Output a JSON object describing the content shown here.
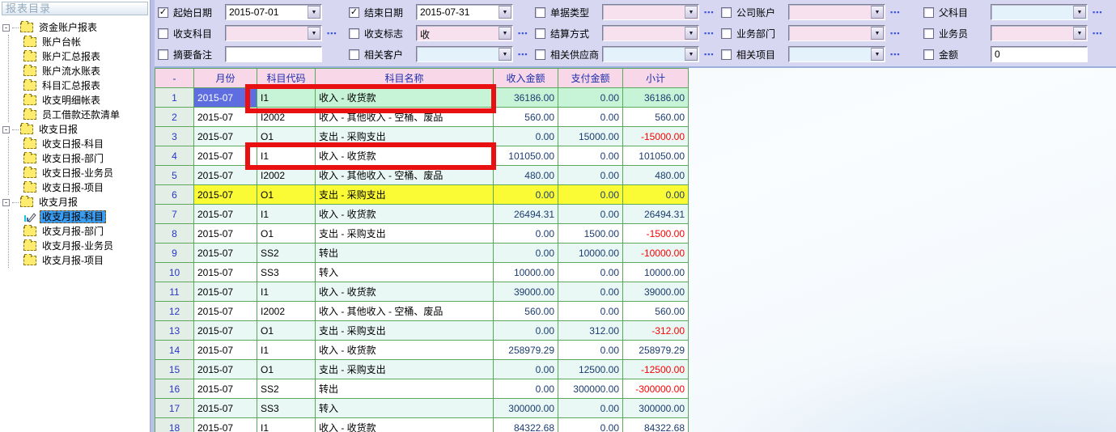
{
  "sidebar": {
    "title": "报表目录",
    "tree": [
      {
        "label": "资金账户报表",
        "children": [
          {
            "label": "账户台帐"
          },
          {
            "label": "账户汇总报表"
          },
          {
            "label": "账户流水账表"
          },
          {
            "label": "科目汇总报表"
          },
          {
            "label": "收支明细帐表"
          },
          {
            "label": "员工借款还款清单"
          }
        ]
      },
      {
        "label": "收支日报",
        "children": [
          {
            "label": "收支日报-科目"
          },
          {
            "label": "收支日报-部门"
          },
          {
            "label": "收支日报-业务员"
          },
          {
            "label": "收支日报-项目"
          }
        ]
      },
      {
        "label": "收支月报",
        "children": [
          {
            "label": "收支月报-科目",
            "selected": true,
            "icon": "chart-pen"
          },
          {
            "label": "收支月报-部门"
          },
          {
            "label": "收支月报-业务员"
          },
          {
            "label": "收支月报-项目"
          }
        ]
      }
    ]
  },
  "filters": {
    "rows": [
      [
        {
          "label": "起始日期",
          "checked": true,
          "value": "2015-07-01",
          "style": "white",
          "arrow": true,
          "dots": false
        },
        {
          "label": "结束日期",
          "checked": true,
          "value": "2015-07-31",
          "style": "white",
          "arrow": true,
          "dots": false
        },
        {
          "label": "单据类型",
          "checked": false,
          "value": "",
          "style": "pink",
          "arrow": true,
          "dots": true
        },
        {
          "label": "公司账户",
          "checked": false,
          "value": "",
          "style": "pink",
          "arrow": true,
          "dots": true
        },
        {
          "label": "父科目",
          "checked": false,
          "value": "",
          "style": "cyan",
          "arrow": true,
          "dots": true
        }
      ],
      [
        {
          "label": "收支科目",
          "checked": false,
          "value": "",
          "style": "pink",
          "arrow": true,
          "dots": true
        },
        {
          "label": "收支标志",
          "checked": false,
          "value": "收",
          "style": "pink",
          "arrow": true,
          "dots": true
        },
        {
          "label": "结算方式",
          "checked": false,
          "value": "",
          "style": "pink",
          "arrow": true,
          "dots": true
        },
        {
          "label": "业务部门",
          "checked": false,
          "value": "",
          "style": "pink",
          "arrow": true,
          "dots": true
        },
        {
          "label": "业务员",
          "checked": false,
          "value": "",
          "style": "pink",
          "arrow": true,
          "dots": true
        }
      ],
      [
        {
          "label": "摘要备注",
          "checked": false,
          "value": "",
          "style": "input",
          "arrow": false,
          "dots": false
        },
        {
          "label": "相关客户",
          "checked": false,
          "value": "",
          "style": "cyan",
          "arrow": true,
          "dots": true
        },
        {
          "label": "相关供应商",
          "checked": false,
          "value": "",
          "style": "cyan",
          "arrow": true,
          "dots": true
        },
        {
          "label": "相关项目",
          "checked": false,
          "value": "",
          "style": "cyan",
          "arrow": true,
          "dots": true
        },
        {
          "label": "金额",
          "checked": false,
          "value": "0",
          "style": "input",
          "arrow": false,
          "dots": false
        }
      ]
    ]
  },
  "table": {
    "columns": [
      "-",
      "月份",
      "科目代码",
      "科目名称",
      "收入金额",
      "支付金额",
      "小计"
    ],
    "rows": [
      {
        "n": 1,
        "month": "2015-07",
        "code": "I1",
        "name": "收入 - 收货款",
        "income": "36186.00",
        "expense": "0.00",
        "subtotal": "36186.00",
        "highlight": "selected"
      },
      {
        "n": 2,
        "month": "2015-07",
        "code": "I2002",
        "name": "收入 - 其他收入 - 空桶、废品",
        "income": "560.00",
        "expense": "0.00",
        "subtotal": "560.00"
      },
      {
        "n": 3,
        "month": "2015-07",
        "code": "O1",
        "name": "支出 - 采购支出",
        "income": "0.00",
        "expense": "15000.00",
        "subtotal": "-15000.00"
      },
      {
        "n": 4,
        "month": "2015-07",
        "code": "I1",
        "name": "收入 - 收货款",
        "income": "101050.00",
        "expense": "0.00",
        "subtotal": "101050.00"
      },
      {
        "n": 5,
        "month": "2015-07",
        "code": "I2002",
        "name": "收入 - 其他收入 - 空桶、废品",
        "income": "480.00",
        "expense": "0.00",
        "subtotal": "480.00"
      },
      {
        "n": 6,
        "month": "2015-07",
        "code": "O1",
        "name": "支出 - 采购支出",
        "income": "0.00",
        "expense": "0.00",
        "subtotal": "0.00",
        "highlight": "yellow"
      },
      {
        "n": 7,
        "month": "2015-07",
        "code": "I1",
        "name": "收入 - 收货款",
        "income": "26494.31",
        "expense": "0.00",
        "subtotal": "26494.31"
      },
      {
        "n": 8,
        "month": "2015-07",
        "code": "O1",
        "name": "支出 - 采购支出",
        "income": "0.00",
        "expense": "1500.00",
        "subtotal": "-1500.00"
      },
      {
        "n": 9,
        "month": "2015-07",
        "code": "SS2",
        "name": "转出",
        "income": "0.00",
        "expense": "10000.00",
        "subtotal": "-10000.00"
      },
      {
        "n": 10,
        "month": "2015-07",
        "code": "SS3",
        "name": "转入",
        "income": "10000.00",
        "expense": "0.00",
        "subtotal": "10000.00"
      },
      {
        "n": 11,
        "month": "2015-07",
        "code": "I1",
        "name": "收入 - 收货款",
        "income": "39000.00",
        "expense": "0.00",
        "subtotal": "39000.00"
      },
      {
        "n": 12,
        "month": "2015-07",
        "code": "I2002",
        "name": "收入 - 其他收入 - 空桶、废品",
        "income": "560.00",
        "expense": "0.00",
        "subtotal": "560.00"
      },
      {
        "n": 13,
        "month": "2015-07",
        "code": "O1",
        "name": "支出 - 采购支出",
        "income": "0.00",
        "expense": "312.00",
        "subtotal": "-312.00"
      },
      {
        "n": 14,
        "month": "2015-07",
        "code": "I1",
        "name": "收入 - 收货款",
        "income": "258979.29",
        "expense": "0.00",
        "subtotal": "258979.29"
      },
      {
        "n": 15,
        "month": "2015-07",
        "code": "O1",
        "name": "支出 - 采购支出",
        "income": "0.00",
        "expense": "12500.00",
        "subtotal": "-12500.00"
      },
      {
        "n": 16,
        "month": "2015-07",
        "code": "SS2",
        "name": "转出",
        "income": "0.00",
        "expense": "300000.00",
        "subtotal": "-300000.00"
      },
      {
        "n": 17,
        "month": "2015-07",
        "code": "SS3",
        "name": "转入",
        "income": "300000.00",
        "expense": "0.00",
        "subtotal": "300000.00"
      },
      {
        "n": 18,
        "month": "2015-07",
        "code": "I1",
        "name": "收入 - 收货款",
        "income": "84322.68",
        "expense": "0.00",
        "subtotal": "84322.68"
      }
    ]
  },
  "icons": {
    "checkbox_checked_glyph": "✓",
    "dropdown_arrow_glyph": "▼",
    "ellipsis_button_glyph": "▪▪▪",
    "collapse_glyph": "-"
  },
  "colors": {
    "annotation_red": "#e81010",
    "selected_cell_blue": "#5e6ee0",
    "selected_row_green": "#c7f4d7",
    "highlight_yellow": "#fbfb35",
    "negative_red": "#fe0000",
    "grid_green": "#5aa95a",
    "header_pink": "#f8d7e8",
    "tree_selection_blue": "#3b9df2"
  }
}
